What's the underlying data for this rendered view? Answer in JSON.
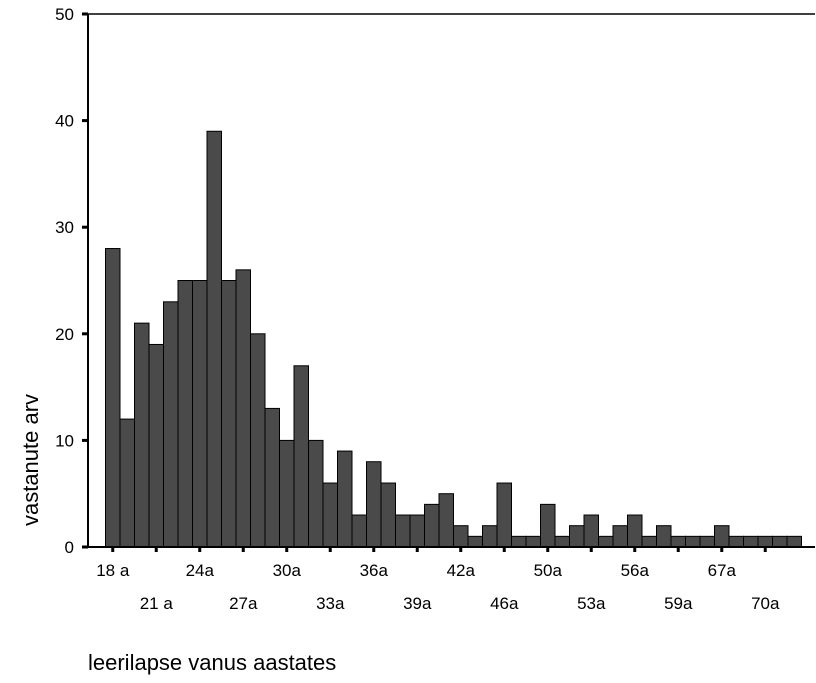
{
  "chart_data": {
    "type": "bar",
    "title": "",
    "xlabel": "leerilapse vanus aastates",
    "ylabel": "vastanute arv",
    "ylim": [
      0,
      50
    ],
    "yticks": [
      0,
      10,
      20,
      30,
      40,
      50
    ],
    "grid": false,
    "legend": "none",
    "bar_color": "#4a4a4a",
    "values": [
      28,
      12,
      21,
      19,
      23,
      25,
      25,
      39,
      25,
      26,
      20,
      13,
      10,
      17,
      10,
      6,
      9,
      3,
      8,
      6,
      3,
      3,
      4,
      5,
      2,
      1,
      2,
      6,
      1,
      1,
      4,
      1,
      2,
      3,
      1,
      2,
      3,
      1,
      2,
      1,
      1,
      1,
      2,
      1,
      1,
      1,
      1,
      1
    ],
    "tick_labels_row1": [
      {
        "bar": 0,
        "label": "18 a"
      },
      {
        "bar": 6,
        "label": "24a"
      },
      {
        "bar": 12,
        "label": "30a"
      },
      {
        "bar": 18,
        "label": "36a"
      },
      {
        "bar": 24,
        "label": "42a"
      },
      {
        "bar": 30,
        "label": "50a"
      },
      {
        "bar": 36,
        "label": "56a"
      },
      {
        "bar": 42,
        "label": "67a"
      }
    ],
    "tick_labels_row2": [
      {
        "bar": 3,
        "label": "21 a"
      },
      {
        "bar": 9,
        "label": "27a"
      },
      {
        "bar": 15,
        "label": "33a"
      },
      {
        "bar": 21,
        "label": "39a"
      },
      {
        "bar": 27,
        "label": "46a"
      },
      {
        "bar": 33,
        "label": "53a"
      },
      {
        "bar": 39,
        "label": "59a"
      },
      {
        "bar": 45,
        "label": "70a"
      }
    ]
  }
}
